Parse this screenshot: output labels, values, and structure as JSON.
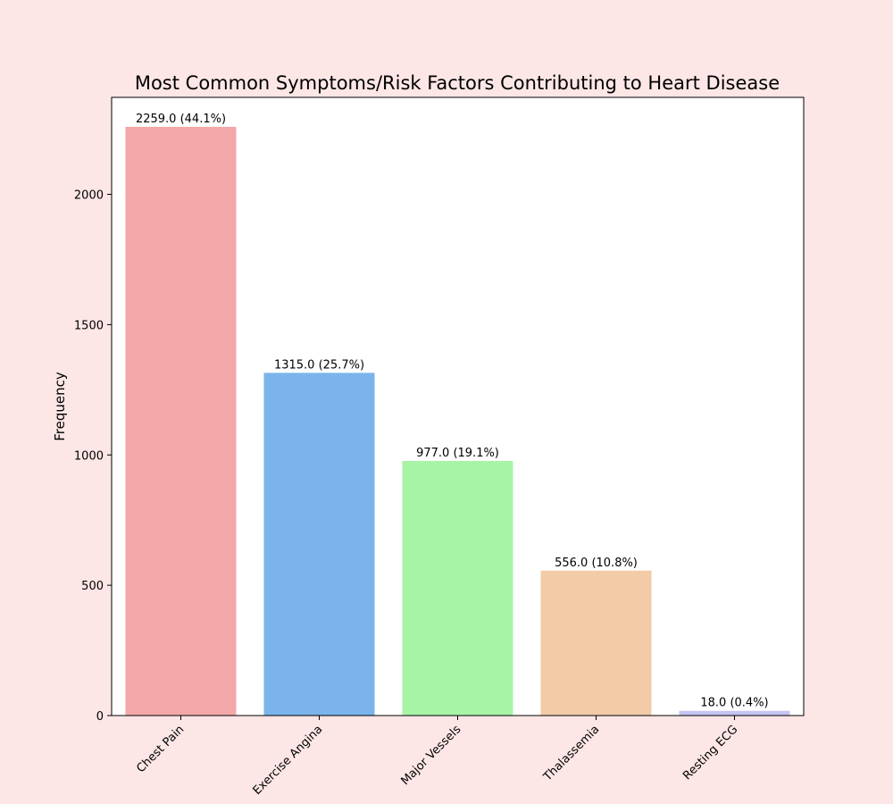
{
  "colors": {
    "figure_background": "#fde6e6",
    "plot_background": "#ffffff",
    "axis": "#000000"
  },
  "chart_data": {
    "type": "bar",
    "title": "Most Common Symptoms/Risk Factors Contributing to Heart Disease",
    "xlabel": "",
    "ylabel": "Frequency",
    "categories": [
      "Chest Pain",
      "Exercise Angina",
      "Major Vessels",
      "Thalassemia",
      "Resting ECG"
    ],
    "values": [
      2259.0,
      1315.0,
      977.0,
      556.0,
      18.0
    ],
    "data_labels": [
      "2259.0 (44.1%)",
      "1315.0 (25.7%)",
      "977.0 (19.1%)",
      "556.0 (10.8%)",
      "18.0 (0.4%)"
    ],
    "bar_colors": [
      "#f2a8a8",
      "#7ab4eb",
      "#a8f4a7",
      "#f2cba7",
      "#c5c5f2"
    ],
    "yticks": [
      0,
      500,
      1000,
      1500,
      2000
    ],
    "ylim": [
      0,
      2372
    ],
    "grid": false,
    "legend": "none"
  }
}
